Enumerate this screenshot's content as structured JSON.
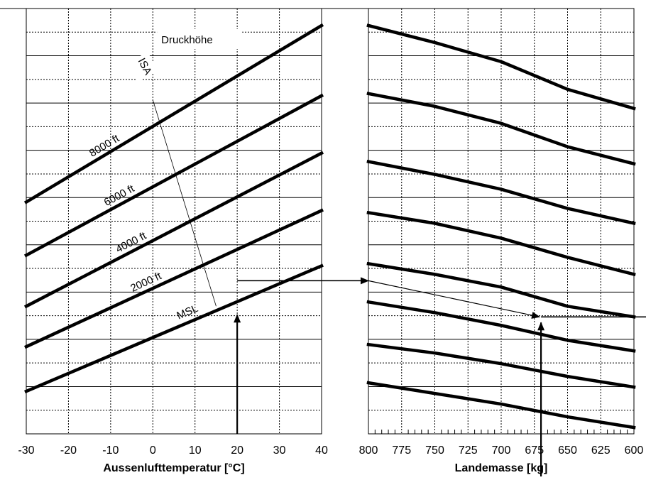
{
  "chart_data": [
    {
      "type": "line",
      "panel": "temperature",
      "xlabel": "Aussenlufttemperatur [°C]",
      "ylabel": "",
      "xlim": [
        -30,
        40
      ],
      "xticks": [
        -30,
        -20,
        -10,
        0,
        10,
        20,
        30,
        40
      ],
      "x_tick_labels": [
        "-30",
        "-20",
        "-10",
        "0",
        "10",
        "20",
        "30",
        "40"
      ],
      "grid": true,
      "annotations": [
        "Druckhöhe",
        "ISA"
      ],
      "series": [
        {
          "name": "MSL",
          "label_text": "MSL",
          "x": [
            -30,
            40
          ],
          "y": [
            1.0,
            3.95
          ]
        },
        {
          "name": "2000 ft",
          "label_text": "2000 ft",
          "x": [
            -30,
            40
          ],
          "y": [
            2.05,
            5.25
          ]
        },
        {
          "name": "4000 ft",
          "label_text": "4000 ft",
          "x": [
            -30,
            40
          ],
          "y": [
            3.0,
            6.6
          ]
        },
        {
          "name": "6000 ft",
          "label_text": "6000 ft",
          "x": [
            -30,
            40
          ],
          "y": [
            4.2,
            7.95
          ]
        },
        {
          "name": "8000 ft",
          "label_text": "8000 ft",
          "x": [
            -30,
            40
          ],
          "y": [
            5.45,
            9.6
          ]
        }
      ],
      "isa_line": {
        "x": [
          0,
          15
        ],
        "y": [
          7.85,
          3.0
        ]
      },
      "example_path": {
        "temperature": 20,
        "reading": 3.6
      }
    },
    {
      "type": "line",
      "panel": "mass",
      "xlabel": "Landemasse [kg]",
      "ylabel": "",
      "xlim": [
        800,
        600
      ],
      "xticks": [
        800,
        775,
        750,
        725,
        700,
        675,
        650,
        625,
        600
      ],
      "x_tick_labels": [
        "800",
        "775",
        "750",
        "725",
        "700",
        "675",
        "650",
        "625",
        "600"
      ],
      "grid": true,
      "series": [
        {
          "x": [
            800,
            750,
            700,
            650,
            600
          ],
          "y": [
            9.6,
            9.2,
            8.75,
            8.1,
            7.65
          ]
        },
        {
          "x": [
            800,
            750,
            700,
            650,
            600
          ],
          "y": [
            8.0,
            7.7,
            7.3,
            6.75,
            6.35
          ]
        },
        {
          "x": [
            800,
            750,
            700,
            650,
            600
          ],
          "y": [
            6.4,
            6.1,
            5.75,
            5.3,
            4.95
          ]
        },
        {
          "x": [
            800,
            750,
            700,
            650,
            600
          ],
          "y": [
            5.2,
            4.95,
            4.6,
            4.15,
            3.75
          ]
        },
        {
          "x": [
            800,
            750,
            700,
            650,
            600
          ],
          "y": [
            4.0,
            3.75,
            3.45,
            3.0,
            2.75
          ]
        },
        {
          "x": [
            800,
            750,
            700,
            650,
            600
          ],
          "y": [
            3.1,
            2.85,
            2.55,
            2.2,
            1.95
          ]
        },
        {
          "x": [
            800,
            750,
            700,
            650,
            600
          ],
          "y": [
            2.1,
            1.9,
            1.65,
            1.35,
            1.1
          ]
        },
        {
          "x": [
            800,
            750,
            700,
            650,
            600
          ],
          "y": [
            1.2,
            0.95,
            0.7,
            0.4,
            0.15
          ]
        }
      ],
      "example_path": {
        "start": 3.6,
        "mass": 670,
        "result": 2.75
      }
    }
  ]
}
